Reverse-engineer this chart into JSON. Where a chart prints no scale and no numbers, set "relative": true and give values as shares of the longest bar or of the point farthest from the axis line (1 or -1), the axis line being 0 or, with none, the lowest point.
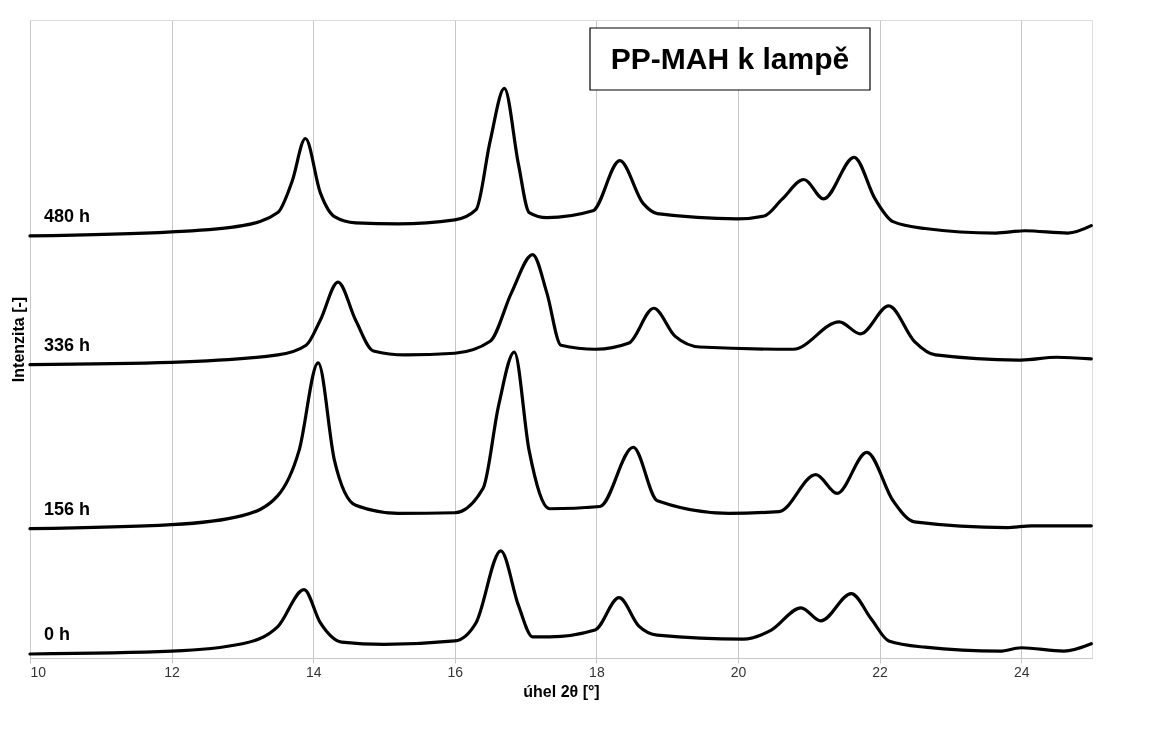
{
  "chart_data": {
    "type": "line",
    "title": "PP-MAH k lampě",
    "xlabel": "úhel 2θ [°]",
    "ylabel": "Intenzita [-]",
    "relative": true,
    "xlim": [
      10,
      25
    ],
    "xticks": [
      10,
      12,
      14,
      16,
      18,
      20,
      22,
      24
    ],
    "grid": "x",
    "marker": "none",
    "line_style": "solid",
    "series": [
      {
        "name": "480 h",
        "color": "#000000",
        "x": [
          10,
          12,
          13,
          13.5,
          13.7,
          13.89,
          14.1,
          14.3,
          14.6,
          15.2,
          16,
          16.3,
          16.5,
          16.7,
          16.9,
          17.05,
          17.3,
          17.95,
          18.33,
          18.66,
          18.86,
          19.99,
          20.37,
          20.62,
          20.93,
          21.21,
          21.64,
          21.94,
          22.19,
          22.64,
          23.64,
          24.05,
          24.66,
          24.99
        ],
        "values": [
          0.741,
          0.748,
          0.759,
          0.782,
          0.836,
          0.912,
          0.817,
          0.775,
          0.764,
          0.762,
          0.769,
          0.787,
          0.908,
          1.0,
          0.866,
          0.782,
          0.773,
          0.785,
          0.873,
          0.798,
          0.78,
          0.771,
          0.776,
          0.805,
          0.84,
          0.806,
          0.879,
          0.805,
          0.766,
          0.754,
          0.746,
          0.75,
          0.746,
          0.759
        ]
      },
      {
        "name": "336 h",
        "color": "#000000",
        "x": [
          10,
          12,
          13.5,
          13.9,
          14.1,
          14.35,
          14.6,
          14.85,
          15.3,
          16,
          16.5,
          16.8,
          17.1,
          17.3,
          17.5,
          17.99,
          18.46,
          18.81,
          19.11,
          19.46,
          20.78,
          21.43,
          21.73,
          22.13,
          22.49,
          22.79,
          24.0,
          24.5,
          24.99
        ],
        "values": [
          0.515,
          0.519,
          0.532,
          0.549,
          0.593,
          0.66,
          0.593,
          0.539,
          0.532,
          0.535,
          0.556,
          0.641,
          0.708,
          0.641,
          0.549,
          0.542,
          0.553,
          0.614,
          0.565,
          0.546,
          0.542,
          0.59,
          0.569,
          0.618,
          0.556,
          0.532,
          0.523,
          0.528,
          0.525
        ]
      },
      {
        "name": "156 h",
        "color": "#000000",
        "x": [
          10,
          12,
          13,
          13.5,
          13.8,
          14.07,
          14.3,
          14.6,
          15.2,
          16,
          16.4,
          16.62,
          16.84,
          17.05,
          17.34,
          18.05,
          18.52,
          18.86,
          19.87,
          20.58,
          21.1,
          21.4,
          21.82,
          22.19,
          22.49,
          23.8,
          24.15,
          24.99
        ],
        "values": [
          0.227,
          0.234,
          0.25,
          0.285,
          0.364,
          0.518,
          0.347,
          0.268,
          0.254,
          0.255,
          0.298,
          0.444,
          0.537,
          0.364,
          0.262,
          0.266,
          0.37,
          0.276,
          0.254,
          0.257,
          0.322,
          0.289,
          0.361,
          0.276,
          0.239,
          0.229,
          0.232,
          0.232
        ]
      },
      {
        "name": "0 h",
        "color": "#000000",
        "x": [
          10,
          12,
          13,
          13.5,
          13.87,
          14.1,
          14.4,
          15,
          16,
          16.3,
          16.65,
          16.9,
          17.1,
          17.34,
          17.98,
          18.32,
          18.6,
          18.86,
          20.07,
          20.47,
          20.89,
          21.17,
          21.6,
          21.88,
          22.13,
          22.64,
          23.7,
          24.0,
          24.6,
          24.99
        ],
        "values": [
          0.007,
          0.012,
          0.025,
          0.055,
          0.12,
          0.062,
          0.028,
          0.024,
          0.03,
          0.062,
          0.188,
          0.092,
          0.037,
          0.037,
          0.049,
          0.106,
          0.056,
          0.04,
          0.033,
          0.049,
          0.088,
          0.065,
          0.113,
          0.069,
          0.03,
          0.019,
          0.012,
          0.018,
          0.012,
          0.025
        ]
      }
    ]
  }
}
